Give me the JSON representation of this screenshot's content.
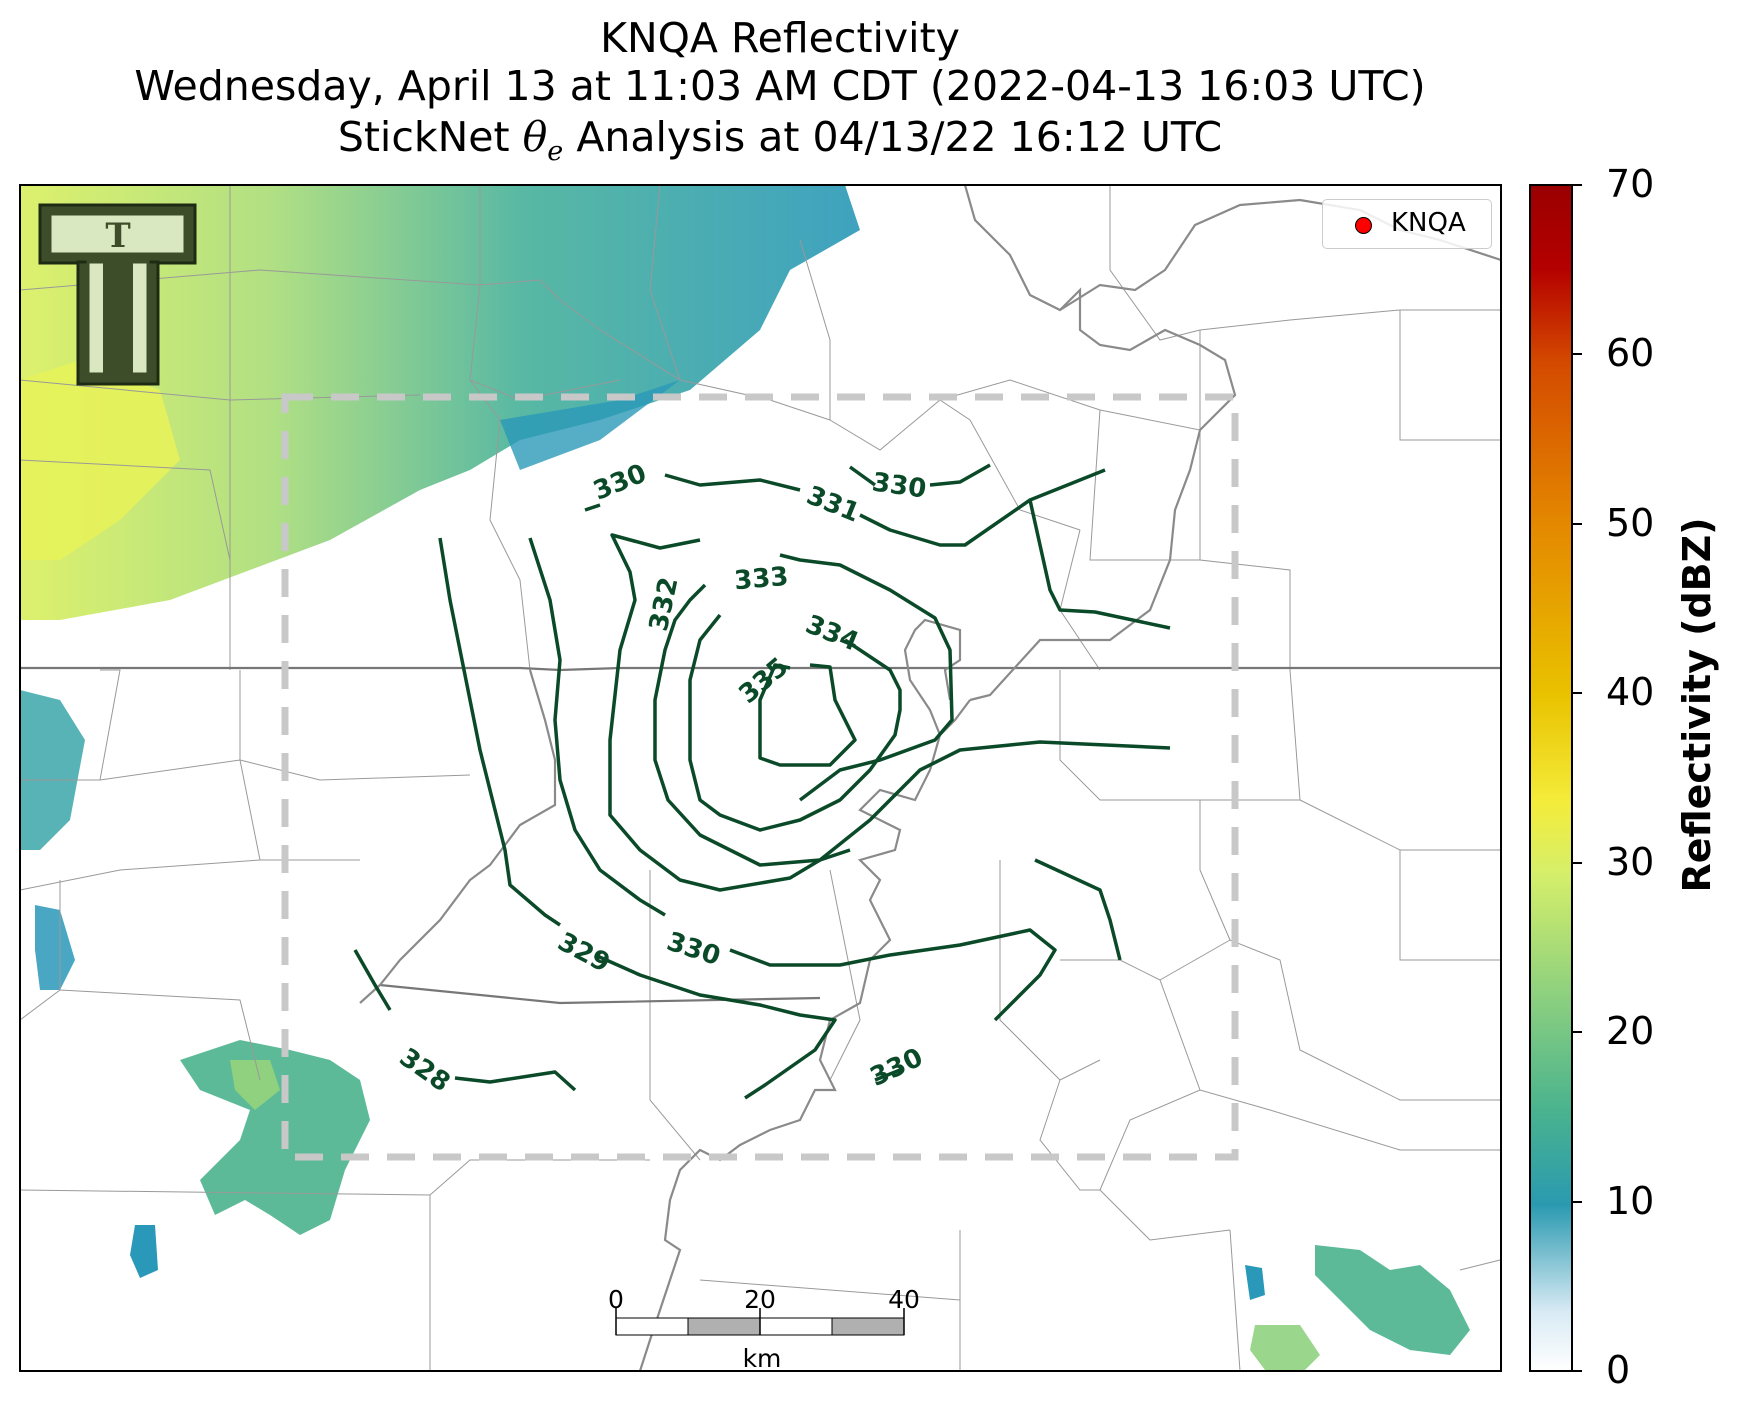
{
  "title": {
    "line1": "KNQA Reflectivity",
    "line2": "Wednesday, April 13 at 11:03 AM CDT (2022-04-13 16:03 UTC)",
    "line3_prefix": "StickNet ",
    "line3_symbol": "θ",
    "line3_subscript": "e",
    "line3_suffix": " Analysis at 04/13/22 16:12 UTC"
  },
  "legend": {
    "label": "KNQA",
    "marker_color": "#ff0000"
  },
  "colorbar": {
    "label": "Reflectivity (dBZ)",
    "ticks": [
      "0",
      "10",
      "20",
      "30",
      "40",
      "50",
      "60",
      "70"
    ],
    "range": [
      0,
      70
    ],
    "colors": [
      "#ffffff",
      "#d8eaf4",
      "#2a9ab0",
      "#4ab38e",
      "#8fd17e",
      "#d6ef6a",
      "#f4ec3a",
      "#e9c200",
      "#e48a00",
      "#d44a00",
      "#b40000",
      "#9a0000"
    ]
  },
  "scale_bar": {
    "ticks": [
      "0",
      "20",
      "40"
    ],
    "unit": "km"
  },
  "contours": {
    "variable": "θe",
    "color": "#0b4a28",
    "labels": [
      "330",
      "330",
      "331",
      "332",
      "333",
      "334",
      "335",
      "329",
      "330",
      "328",
      "330"
    ]
  },
  "logo": {
    "text": "T"
  },
  "map_colors": {
    "state_border": "#777777",
    "county_border": "#999999",
    "river": "#8a8a8a",
    "analysis_box": "#c8c8c8"
  }
}
